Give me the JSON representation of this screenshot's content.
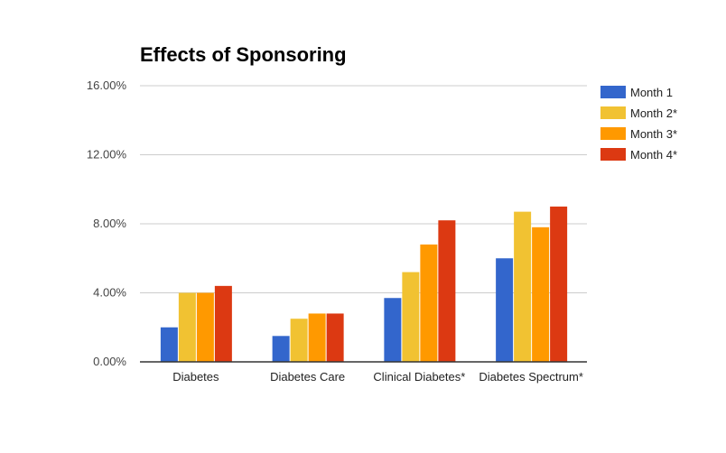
{
  "chart_data": {
    "type": "bar",
    "title": "Effects of Sponsoring",
    "xlabel": "",
    "ylabel": "",
    "categories": [
      "Diabetes",
      "Diabetes Care",
      "Clinical Diabetes*",
      "Diabetes Spectrum*"
    ],
    "series": [
      {
        "name": "Month 1",
        "color": "#3366cc",
        "values": [
          2.0,
          1.5,
          3.7,
          6.0
        ]
      },
      {
        "name": "Month 2*",
        "color": "#f1c232",
        "values": [
          4.0,
          2.5,
          5.2,
          8.7
        ]
      },
      {
        "name": "Month 3*",
        "color": "#ff9900",
        "values": [
          4.0,
          2.8,
          6.8,
          7.8
        ]
      },
      {
        "name": "Month 4*",
        "color": "#dc3912",
        "values": [
          4.4,
          2.8,
          8.2,
          9.0
        ]
      }
    ],
    "yticks": [
      "0.00%",
      "4.00%",
      "8.00%",
      "12.00%",
      "16.00%"
    ],
    "ylim": [
      0,
      16
    ],
    "y_unit": "percent",
    "grid": true,
    "legend": "right"
  }
}
